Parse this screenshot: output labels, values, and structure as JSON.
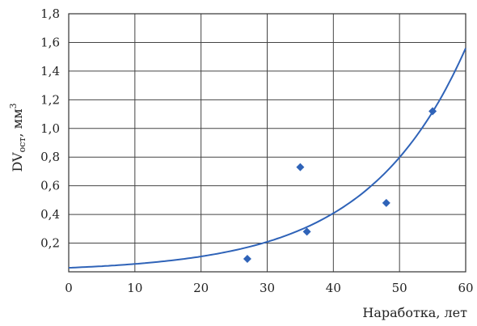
{
  "chart_data": {
    "type": "scatter",
    "xlabel": "Наработка, лет",
    "ylabel_main": "DV",
    "ylabel_sub": "ост",
    "ylabel_unit": ", мм",
    "ylabel_sup": "3",
    "xlim": [
      0,
      60
    ],
    "ylim": [
      0,
      1.8
    ],
    "x_ticks": [
      0,
      10,
      20,
      30,
      40,
      50,
      60
    ],
    "x_tick_labels": [
      "0",
      "10",
      "20",
      "30",
      "40",
      "50",
      "60"
    ],
    "y_ticks": [
      0.2,
      0.4,
      0.6,
      0.8,
      1.0,
      1.2,
      1.4,
      1.6,
      1.8
    ],
    "y_tick_labels": [
      "0,2",
      "0,4",
      "0,6",
      "0,8",
      "1,0",
      "1,2",
      "1,4",
      "1,6",
      "1,8"
    ],
    "grid": true,
    "points": [
      {
        "x": 27,
        "y": 0.09
      },
      {
        "x": 35,
        "y": 0.73
      },
      {
        "x": 36,
        "y": 0.28
      },
      {
        "x": 48,
        "y": 0.48
      },
      {
        "x": 55,
        "y": 1.12
      }
    ],
    "trend": {
      "type": "exponential",
      "a": 0.028,
      "b": 0.067
    },
    "colors": {
      "series": "#2f63b8",
      "grid": "#444444",
      "text": "#222222"
    }
  }
}
